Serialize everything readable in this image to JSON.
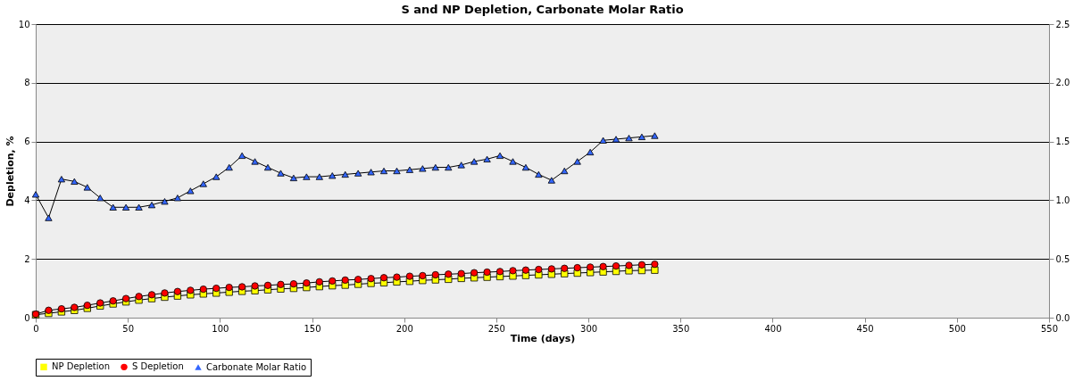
{
  "chart_data": {
    "type": "line",
    "title": "S and NP Depletion, Carbonate Molar Ratio",
    "xlabel": "Time (days)",
    "ylabel": "Depletion, %",
    "x": [
      0,
      7,
      14,
      21,
      28,
      35,
      42,
      49,
      56,
      63,
      70,
      77,
      84,
      91,
      98,
      105,
      112,
      119,
      126,
      133,
      140,
      147,
      154,
      161,
      168,
      175,
      182,
      189,
      196,
      203,
      210,
      217,
      224,
      231,
      238,
      245,
      252,
      259,
      266,
      273,
      280,
      287,
      294,
      301,
      308,
      315,
      322,
      329,
      336
    ],
    "series": [
      {
        "name": "NP Depletion",
        "color": "#ffff00",
        "marker": "square",
        "values": [
          0.1,
          0.15,
          0.2,
          0.25,
          0.32,
          0.4,
          0.47,
          0.54,
          0.6,
          0.65,
          0.7,
          0.74,
          0.78,
          0.81,
          0.84,
          0.87,
          0.9,
          0.92,
          0.95,
          0.98,
          1.0,
          1.03,
          1.06,
          1.09,
          1.11,
          1.14,
          1.17,
          1.19,
          1.22,
          1.24,
          1.27,
          1.29,
          1.31,
          1.34,
          1.36,
          1.38,
          1.4,
          1.42,
          1.44,
          1.46,
          1.48,
          1.5,
          1.52,
          1.54,
          1.56,
          1.58,
          1.6,
          1.61,
          1.62
        ]
      },
      {
        "name": "S Depletion",
        "color": "#ff0000",
        "marker": "circle",
        "values": [
          0.12,
          0.25,
          0.3,
          0.35,
          0.42,
          0.5,
          0.57,
          0.65,
          0.72,
          0.78,
          0.84,
          0.89,
          0.93,
          0.97,
          1.0,
          1.03,
          1.05,
          1.08,
          1.1,
          1.13,
          1.15,
          1.18,
          1.22,
          1.25,
          1.28,
          1.3,
          1.33,
          1.36,
          1.38,
          1.41,
          1.43,
          1.46,
          1.48,
          1.5,
          1.53,
          1.55,
          1.57,
          1.6,
          1.62,
          1.64,
          1.66,
          1.68,
          1.7,
          1.72,
          1.74,
          1.76,
          1.78,
          1.8,
          1.82
        ]
      },
      {
        "name": "Carbonate Molar Ratio",
        "color": "#3366ff",
        "marker": "triangle",
        "axis": "y2",
        "values": [
          1.05,
          0.85,
          1.18,
          1.16,
          1.11,
          1.02,
          0.94,
          0.94,
          0.94,
          0.96,
          0.99,
          1.02,
          1.08,
          1.14,
          1.2,
          1.28,
          1.38,
          1.33,
          1.28,
          1.23,
          1.19,
          1.2,
          1.2,
          1.21,
          1.22,
          1.23,
          1.24,
          1.25,
          1.25,
          1.26,
          1.27,
          1.28,
          1.28,
          1.3,
          1.33,
          1.35,
          1.38,
          1.33,
          1.28,
          1.22,
          1.17,
          1.25,
          1.33,
          1.41,
          1.51,
          1.52,
          1.53,
          1.54,
          1.55
        ]
      }
    ],
    "xlim": [
      0,
      550
    ],
    "xticks": [
      0,
      50,
      100,
      150,
      200,
      250,
      300,
      350,
      400,
      450,
      500,
      550
    ],
    "ylim": [
      0,
      10
    ],
    "yticks": [
      0,
      2,
      4,
      6,
      8,
      10
    ],
    "y2lim": [
      0,
      2.5
    ],
    "y2ticks": [
      {
        "value": 0,
        "label": "0.0"
      },
      0.5,
      {
        "value": 1,
        "label": "1.0"
      },
      1.5,
      {
        "value": 2,
        "label": "2.0"
      },
      2.5
    ],
    "grid": "y",
    "legend": "bottom",
    "line_style": "solid"
  }
}
